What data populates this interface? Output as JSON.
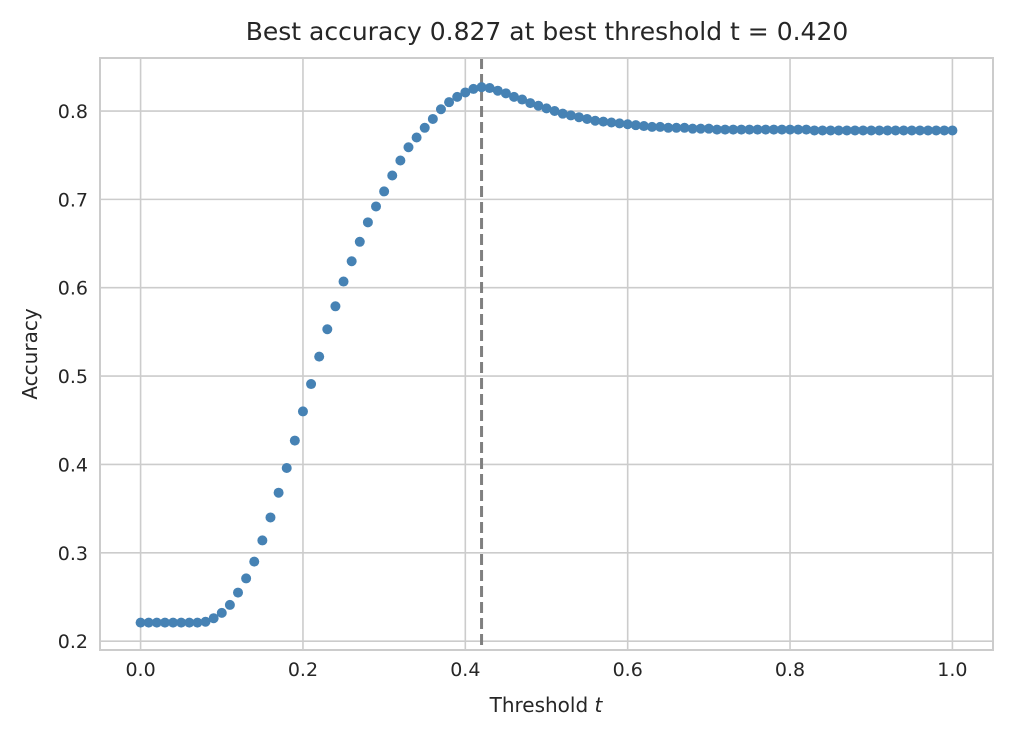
{
  "chart_data": {
    "type": "scatter",
    "title": "Best accuracy 0.827 at best threshold t = 0.420",
    "xlabel": "Threshold",
    "xlabel_var": "t",
    "ylabel": "Accuracy",
    "xlim": [
      -0.05,
      1.05
    ],
    "ylim": [
      0.19,
      0.86
    ],
    "xticks": [
      0.0,
      0.2,
      0.4,
      0.6,
      0.8,
      1.0
    ],
    "xtick_labels": [
      "0.0",
      "0.2",
      "0.4",
      "0.6",
      "0.8",
      "1.0"
    ],
    "yticks": [
      0.2,
      0.3,
      0.4,
      0.5,
      0.6,
      0.7,
      0.8
    ],
    "ytick_labels": [
      "0.2",
      "0.3",
      "0.4",
      "0.5",
      "0.6",
      "0.7",
      "0.8"
    ],
    "grid": true,
    "marker_color": "#4682b4",
    "reference_line": {
      "x": 0.42,
      "style": "dashed",
      "color": "#808080"
    },
    "x": [
      0.0,
      0.01,
      0.02,
      0.03,
      0.04,
      0.05,
      0.06,
      0.07,
      0.08,
      0.09,
      0.1,
      0.11,
      0.12,
      0.13,
      0.14,
      0.15,
      0.16,
      0.17,
      0.18,
      0.19,
      0.2,
      0.21,
      0.22,
      0.23,
      0.24,
      0.25,
      0.26,
      0.27,
      0.28,
      0.29,
      0.3,
      0.31,
      0.32,
      0.33,
      0.34,
      0.35,
      0.36,
      0.37,
      0.38,
      0.39,
      0.4,
      0.41,
      0.42,
      0.43,
      0.44,
      0.45,
      0.46,
      0.47,
      0.48,
      0.49,
      0.5,
      0.51,
      0.52,
      0.53,
      0.54,
      0.55,
      0.56,
      0.57,
      0.58,
      0.59,
      0.6,
      0.61,
      0.62,
      0.63,
      0.64,
      0.65,
      0.66,
      0.67,
      0.68,
      0.69,
      0.7,
      0.71,
      0.72,
      0.73,
      0.74,
      0.75,
      0.76,
      0.77,
      0.78,
      0.79,
      0.8,
      0.81,
      0.82,
      0.83,
      0.84,
      0.85,
      0.86,
      0.87,
      0.88,
      0.89,
      0.9,
      0.91,
      0.92,
      0.93,
      0.94,
      0.95,
      0.96,
      0.97,
      0.98,
      0.99,
      1.0
    ],
    "y": [
      0.221,
      0.221,
      0.221,
      0.221,
      0.221,
      0.221,
      0.221,
      0.221,
      0.222,
      0.226,
      0.232,
      0.241,
      0.255,
      0.271,
      0.29,
      0.314,
      0.34,
      0.368,
      0.396,
      0.427,
      0.46,
      0.491,
      0.522,
      0.553,
      0.579,
      0.607,
      0.63,
      0.652,
      0.674,
      0.692,
      0.709,
      0.727,
      0.744,
      0.759,
      0.77,
      0.781,
      0.791,
      0.802,
      0.81,
      0.816,
      0.821,
      0.825,
      0.827,
      0.826,
      0.823,
      0.82,
      0.816,
      0.813,
      0.809,
      0.806,
      0.803,
      0.8,
      0.797,
      0.795,
      0.793,
      0.791,
      0.789,
      0.788,
      0.787,
      0.786,
      0.785,
      0.784,
      0.783,
      0.782,
      0.782,
      0.781,
      0.781,
      0.781,
      0.78,
      0.78,
      0.78,
      0.779,
      0.779,
      0.779,
      0.779,
      0.779,
      0.779,
      0.779,
      0.779,
      0.779,
      0.779,
      0.779,
      0.779,
      0.778,
      0.778,
      0.778,
      0.778,
      0.778,
      0.778,
      0.778,
      0.778,
      0.778,
      0.778,
      0.778,
      0.778,
      0.778,
      0.778,
      0.778,
      0.778,
      0.778,
      0.778
    ]
  }
}
